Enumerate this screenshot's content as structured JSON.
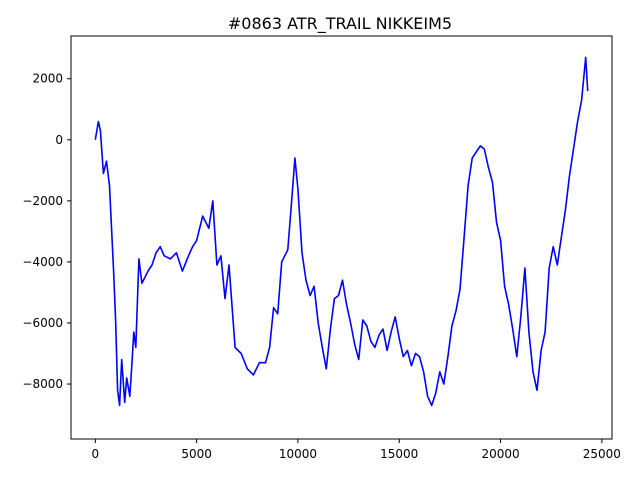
{
  "chart_data": {
    "type": "line",
    "title": "#0863 ATR_TRAIL NIKKEIM5",
    "xlabel": "",
    "ylabel": "",
    "xlim": [
      -1200,
      25500
    ],
    "ylim": [
      -9800,
      3400
    ],
    "xticks": [
      0,
      5000,
      10000,
      15000,
      20000,
      25000
    ],
    "xtick_labels": [
      "0",
      "5000",
      "10000",
      "15000",
      "20000",
      "25000"
    ],
    "yticks": [
      -8000,
      -6000,
      -4000,
      -2000,
      0,
      2000
    ],
    "ytick_labels": [
      "−8000",
      "−6000",
      "−4000",
      "−2000",
      "0",
      "2000"
    ],
    "grid": false,
    "line_color": "#0000ff",
    "series": [
      {
        "x": [
          0,
          150,
          250,
          400,
          550,
          700,
          900,
          1000,
          1100,
          1200,
          1300,
          1450,
          1550,
          1700,
          1800,
          1900,
          2000,
          2150,
          2300,
          2450,
          2600,
          2800,
          3000,
          3200,
          3400,
          3700,
          4000,
          4300,
          4600,
          4800,
          5000,
          5300,
          5600,
          5800,
          6000,
          6200,
          6400,
          6600,
          6900,
          7200,
          7500,
          7800,
          8100,
          8400,
          8600,
          8800,
          9000,
          9200,
          9500,
          9700,
          9850,
          10000,
          10200,
          10400,
          10600,
          10800,
          11000,
          11200,
          11400,
          11600,
          11800,
          12000,
          12200,
          12400,
          12600,
          12800,
          13000,
          13200,
          13400,
          13600,
          13800,
          14000,
          14200,
          14400,
          14600,
          14800,
          15000,
          15200,
          15400,
          15600,
          15800,
          16000,
          16200,
          16400,
          16600,
          16800,
          17000,
          17200,
          17400,
          17600,
          17800,
          18000,
          18200,
          18400,
          18600,
          18800,
          19000,
          19200,
          19400,
          19600,
          19800,
          20000,
          20200,
          20400,
          20600,
          20800,
          21000,
          21200,
          21400,
          21600,
          21800,
          22000,
          22200,
          22400,
          22600,
          22800,
          23000,
          23200,
          23400,
          23600,
          23800,
          24000,
          24200,
          24300
        ],
        "y": [
          0,
          600,
          300,
          -1100,
          -700,
          -1500,
          -4300,
          -5900,
          -8200,
          -8700,
          -7200,
          -8600,
          -7800,
          -8400,
          -7400,
          -6300,
          -6800,
          -3900,
          -4700,
          -4500,
          -4300,
          -4100,
          -3700,
          -3500,
          -3800,
          -3900,
          -3700,
          -4300,
          -3800,
          -3500,
          -3300,
          -2500,
          -2900,
          -2000,
          -4100,
          -3800,
          -5200,
          -4100,
          -6800,
          -7000,
          -7500,
          -7700,
          -7300,
          -7300,
          -6800,
          -5500,
          -5700,
          -4000,
          -3600,
          -1900,
          -600,
          -1600,
          -3700,
          -4600,
          -5100,
          -4800,
          -6000,
          -6800,
          -7500,
          -6200,
          -5200,
          -5100,
          -4600,
          -5400,
          -6000,
          -6700,
          -7200,
          -5900,
          -6100,
          -6600,
          -6800,
          -6400,
          -6200,
          -6900,
          -6300,
          -5800,
          -6500,
          -7100,
          -6900,
          -7400,
          -7000,
          -7100,
          -7600,
          -8400,
          -8700,
          -8300,
          -7600,
          -8000,
          -7100,
          -6100,
          -5600,
          -4900,
          -3200,
          -1500,
          -600,
          -400,
          -200,
          -300,
          -900,
          -1400,
          -2700,
          -3300,
          -4800,
          -5400,
          -6200,
          -7100,
          -5800,
          -4200,
          -6300,
          -7600,
          -8200,
          -6900,
          -6300,
          -4200,
          -3500,
          -4100,
          -3200,
          -2300,
          -1200,
          -300,
          600,
          1300,
          2700,
          1600
        ]
      }
    ]
  }
}
